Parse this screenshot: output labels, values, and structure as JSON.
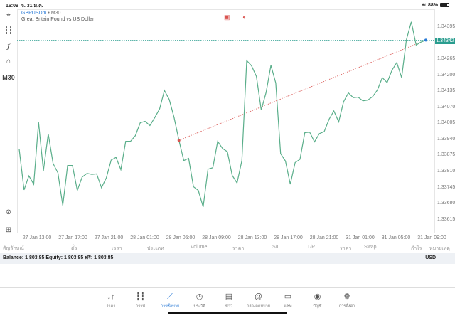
{
  "status_bar": {
    "time": "16:09",
    "date": "จ. 31 ม.ค.",
    "battery": "88%",
    "battery_level": 0.88
  },
  "toolbar": {
    "timeframe": "M30",
    "icons": [
      "crosshair-icon",
      "candlestick-icon",
      "function-icon",
      "shapes-icon",
      "zoom-fit-icon",
      "add-box-icon"
    ]
  },
  "chart_header": {
    "symbol": "GBPUSDm",
    "separator": "•",
    "timeframe": "M30",
    "description": "Great Britain Pound vs US Dollar"
  },
  "colors": {
    "line": "#5aae8a",
    "current_price": "#2a9d8f",
    "trade_line": "#d9534f",
    "accent": "#2a7ad6"
  },
  "chart_data": {
    "type": "line",
    "x_tick_labels": [
      "27 Jan 13:00",
      "27 Jan 17:00",
      "27 Jan 21:00",
      "28 Jan 01:00",
      "28 Jan 05:00",
      "28 Jan 09:00",
      "28 Jan 13:00",
      "28 Jan 17:00",
      "28 Jan 21:00",
      "31 Jan 01:00",
      "31 Jan 05:00",
      "31 Jan 09:00"
    ],
    "y_tick_labels": [
      "1.34395",
      "1.34330",
      "1.34265",
      "1.34200",
      "1.34135",
      "1.34070",
      "1.34005",
      "1.33940",
      "1.33875",
      "1.33810",
      "1.33745",
      "1.33680",
      "1.33615"
    ],
    "ylim": [
      1.3358,
      1.3448
    ],
    "current_price": "1.34342",
    "values": [
      1.339,
      1.33735,
      1.33792,
      1.33758,
      1.34009,
      1.33813,
      1.33962,
      1.33842,
      1.33804,
      1.33672,
      1.33834,
      1.33834,
      1.33733,
      1.33787,
      1.33802,
      1.33798,
      1.338,
      1.33744,
      1.33784,
      1.33856,
      1.33867,
      1.33817,
      1.33932,
      1.33932,
      1.33955,
      1.34007,
      1.34013,
      1.33996,
      1.34028,
      1.34063,
      1.34138,
      1.34101,
      1.34028,
      1.33936,
      1.33854,
      1.33863,
      1.33748,
      1.33733,
      1.33666,
      1.33819,
      1.33825,
      1.33932,
      1.33903,
      1.3389,
      1.33794,
      1.33763,
      1.33854,
      1.34259,
      1.34238,
      1.34195,
      1.34059,
      1.3413,
      1.3424,
      1.34168,
      1.33882,
      1.33852,
      1.33758,
      1.33846,
      1.33859,
      1.33967,
      1.33969,
      1.3393,
      1.33963,
      1.33971,
      1.34021,
      1.34055,
      1.34011,
      1.34092,
      1.34128,
      1.34109,
      1.34111,
      1.34096,
      1.34099,
      1.34113,
      1.3414,
      1.3419,
      1.3417,
      1.3422,
      1.34251,
      1.3419,
      1.34345,
      1.34416,
      1.34322,
      1.34334,
      1.34342
    ],
    "trade_entry": {
      "index": 33,
      "price": 1.33936
    },
    "grid": false
  },
  "table_headers": [
    "สัญลักษณ์",
    "ตั๋ว",
    "เวลา",
    "ประเภท",
    "Volume",
    "ราคา",
    "S/L",
    "T/P",
    "ราคา",
    "Swap",
    "กำไร",
    "หมายเหตุ"
  ],
  "balance": {
    "text": "Balance: 1 803.85 Equity: 1 803.85 ฟรี: 1 803.85",
    "currency": "USD"
  },
  "tabs": [
    {
      "label": "ราคา",
      "icon": "↓↑"
    },
    {
      "label": "กราฟ",
      "icon": "┇┇"
    },
    {
      "label": "การซื้อขาย",
      "icon": "⟋"
    },
    {
      "label": "ประวัติ",
      "icon": "◷"
    },
    {
      "label": "ข่าว",
      "icon": "▤"
    },
    {
      "label": "กล่องจดหมาย",
      "icon": "@"
    },
    {
      "label": "แชท",
      "icon": "▭"
    },
    {
      "label": "บัญชี",
      "icon": "◉"
    },
    {
      "label": "การตั้งค่า",
      "icon": "⚙"
    }
  ],
  "active_tab": 2
}
